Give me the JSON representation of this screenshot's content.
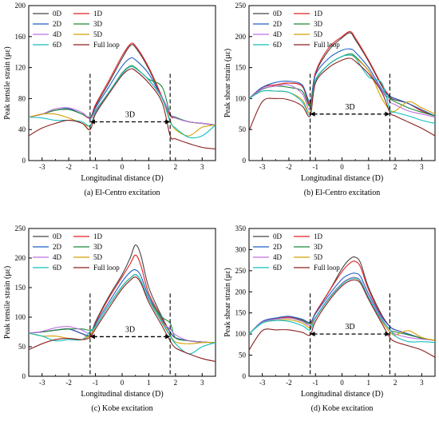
{
  "colors": {
    "0D": "#444444",
    "1D": "#e02020",
    "2D": "#1f5fc8",
    "3D": "#1a8a3a",
    "4D": "#c070e0",
    "5D": "#d4a000",
    "6D": "#10c0c0",
    "Full loop": "#8b2020"
  },
  "chart_data": [
    {
      "type": "line",
      "caption": "(a) El-Centro excitation",
      "xlabel": "Longitudinal distance (D)",
      "ylabel": "Peak tensile strain (με)",
      "xlim": [
        -3.5,
        3.5
      ],
      "ylim": [
        0,
        200
      ],
      "xticks": [
        -3,
        -2,
        -1,
        0,
        1,
        2,
        3
      ],
      "yticks": [
        0,
        40,
        80,
        120,
        160,
        200
      ],
      "legend_position": "top-left",
      "annotation": {
        "text": "3D",
        "x1": -1.2,
        "x2": 1.8,
        "y": 50
      },
      "x": [
        -3.5,
        -3.0,
        -2.5,
        -2.0,
        -1.5,
        -1.2,
        -1.0,
        -0.5,
        0.0,
        0.3,
        0.5,
        1.0,
        1.5,
        1.8,
        2.0,
        2.5,
        3.0,
        3.5
      ],
      "series": [
        {
          "name": "0D",
          "values": [
            56,
            60,
            65,
            66,
            60,
            55,
            70,
            100,
            132,
            148,
            146,
            118,
            80,
            58,
            55,
            50,
            48,
            46
          ]
        },
        {
          "name": "1D",
          "values": [
            56,
            60,
            65,
            66,
            60,
            55,
            72,
            103,
            135,
            150,
            148,
            120,
            82,
            58,
            55,
            50,
            48,
            46
          ]
        },
        {
          "name": "2D",
          "values": [
            56,
            60,
            65,
            67,
            60,
            56,
            68,
            95,
            122,
            132,
            130,
            112,
            80,
            60,
            56,
            50,
            48,
            46
          ]
        },
        {
          "name": "3D",
          "values": [
            56,
            60,
            65,
            66,
            60,
            56,
            65,
            88,
            113,
            122,
            120,
            105,
            95,
            60,
            56,
            50,
            48,
            46
          ]
        },
        {
          "name": "4D",
          "values": [
            56,
            60,
            67,
            68,
            62,
            54,
            64,
            88,
            112,
            121,
            119,
            104,
            82,
            60,
            55,
            50,
            48,
            46
          ]
        },
        {
          "name": "5D",
          "values": [
            56,
            60,
            60,
            55,
            48,
            45,
            62,
            88,
            112,
            121,
            119,
            104,
            80,
            52,
            40,
            32,
            43,
            46
          ]
        },
        {
          "name": "6D",
          "values": [
            56,
            55,
            52,
            52,
            50,
            45,
            62,
            88,
            112,
            121,
            119,
            104,
            80,
            50,
            42,
            30,
            32,
            46
          ]
        },
        {
          "name": "Full loop",
          "values": [
            32,
            42,
            48,
            52,
            48,
            40,
            60,
            86,
            110,
            118,
            116,
            100,
            75,
            32,
            28,
            22,
            17,
            15
          ]
        }
      ]
    },
    {
      "type": "line",
      "caption": "(b) El-Centro excitation",
      "xlabel": "Longitudinal distance (D)",
      "ylabel": "Peak shear strain (με)",
      "xlim": [
        -3.5,
        3.5
      ],
      "ylim": [
        0,
        250
      ],
      "xticks": [
        -3,
        -2,
        -1,
        0,
        1,
        2,
        3
      ],
      "yticks": [
        0,
        50,
        100,
        150,
        200,
        250
      ],
      "legend_position": "top-left",
      "annotation": {
        "text": "3D",
        "x1": -1.2,
        "x2": 1.8,
        "y": 75
      },
      "x": [
        -3.5,
        -3.0,
        -2.5,
        -2.0,
        -1.5,
        -1.2,
        -1.0,
        -0.5,
        0.0,
        0.3,
        0.5,
        1.0,
        1.5,
        1.8,
        2.0,
        2.5,
        3.0,
        3.5
      ],
      "series": [
        {
          "name": "0D",
          "values": [
            100,
            118,
            122,
            125,
            120,
            90,
            140,
            178,
            198,
            206,
            195,
            160,
            120,
            102,
            98,
            92,
            80,
            72
          ]
        },
        {
          "name": "1D",
          "values": [
            100,
            118,
            122,
            125,
            120,
            92,
            142,
            182,
            200,
            208,
            198,
            162,
            122,
            104,
            100,
            92,
            80,
            72
          ]
        },
        {
          "name": "2D",
          "values": [
            100,
            118,
            126,
            128,
            122,
            95,
            138,
            165,
            178,
            180,
            175,
            150,
            115,
            104,
            100,
            92,
            82,
            72
          ]
        },
        {
          "name": "3D",
          "values": [
            100,
            115,
            120,
            118,
            112,
            88,
            130,
            155,
            168,
            172,
            168,
            145,
            112,
            100,
            95,
            85,
            78,
            72
          ]
        },
        {
          "name": "4D",
          "values": [
            100,
            116,
            120,
            122,
            108,
            82,
            128,
            155,
            168,
            170,
            166,
            145,
            112,
            95,
            90,
            80,
            75,
            70
          ]
        },
        {
          "name": "5D",
          "values": [
            100,
            112,
            112,
            110,
            98,
            78,
            128,
            155,
            168,
            170,
            166,
            145,
            100,
            82,
            80,
            95,
            85,
            75
          ]
        },
        {
          "name": "6D",
          "values": [
            100,
            112,
            112,
            110,
            95,
            75,
            128,
            155,
            168,
            170,
            166,
            135,
            125,
            82,
            78,
            72,
            65,
            60
          ]
        },
        {
          "name": "Full loop",
          "values": [
            48,
            95,
            100,
            98,
            88,
            72,
            125,
            150,
            162,
            165,
            160,
            140,
            110,
            78,
            72,
            62,
            52,
            40
          ]
        }
      ]
    },
    {
      "type": "line",
      "caption": "(c) Kobe excitation",
      "xlabel": "Longitudinal distance (D)",
      "ylabel": "Peak tensile strain (με)",
      "xlim": [
        -3.5,
        3.5
      ],
      "ylim": [
        0,
        250
      ],
      "xticks": [
        -3,
        -2,
        -1,
        0,
        1,
        2,
        3
      ],
      "yticks": [
        0,
        50,
        100,
        150,
        200,
        250
      ],
      "legend_position": "top-left",
      "annotation": {
        "text": "3D",
        "x1": -1.2,
        "x2": 1.8,
        "y": 67
      },
      "x": [
        -3.5,
        -3.0,
        -2.5,
        -2.0,
        -1.5,
        -1.2,
        -1.0,
        -0.5,
        0.0,
        0.3,
        0.5,
        0.7,
        1.0,
        1.5,
        1.8,
        2.0,
        2.5,
        3.0,
        3.5
      ],
      "series": [
        {
          "name": "0D",
          "values": [
            73,
            75,
            78,
            80,
            72,
            68,
            92,
            135,
            172,
            200,
            222,
            205,
            150,
            100,
            75,
            65,
            60,
            58,
            57
          ]
        },
        {
          "name": "1D",
          "values": [
            73,
            75,
            78,
            80,
            72,
            68,
            90,
            132,
            168,
            190,
            205,
            188,
            140,
            98,
            75,
            65,
            60,
            58,
            57
          ]
        },
        {
          "name": "2D",
          "values": [
            73,
            75,
            78,
            80,
            72,
            70,
            88,
            125,
            160,
            176,
            180,
            170,
            135,
            95,
            75,
            65,
            60,
            58,
            57
          ]
        },
        {
          "name": "3D",
          "values": [
            73,
            75,
            78,
            80,
            80,
            78,
            85,
            120,
            152,
            166,
            172,
            162,
            130,
            100,
            90,
            65,
            60,
            58,
            57
          ]
        },
        {
          "name": "4D",
          "values": [
            73,
            76,
            82,
            84,
            78,
            72,
            84,
            120,
            152,
            166,
            172,
            162,
            130,
            92,
            80,
            70,
            60,
            58,
            57
          ]
        },
        {
          "name": "5D",
          "values": [
            73,
            68,
            68,
            64,
            62,
            70,
            84,
            120,
            152,
            166,
            172,
            162,
            130,
            92,
            70,
            58,
            55,
            57,
            57
          ]
        },
        {
          "name": "6D",
          "values": [
            73,
            68,
            60,
            62,
            62,
            76,
            84,
            120,
            152,
            166,
            172,
            162,
            130,
            90,
            68,
            55,
            38,
            50,
            57
          ]
        },
        {
          "name": "Full loop",
          "values": [
            45,
            55,
            62,
            64,
            62,
            66,
            80,
            115,
            148,
            162,
            168,
            158,
            125,
            85,
            60,
            48,
            38,
            30,
            25
          ]
        }
      ]
    },
    {
      "type": "line",
      "caption": "(d) Kobe excitation",
      "xlabel": "Longitudinal distance (D)",
      "ylabel": "Peak shear strain (με)",
      "xlim": [
        -3.5,
        3.5
      ],
      "ylim": [
        0,
        350
      ],
      "xticks": [
        -3,
        -2,
        -1,
        0,
        1,
        2,
        3
      ],
      "yticks": [
        0,
        50,
        100,
        150,
        200,
        250,
        300,
        350
      ],
      "legend_position": "top-left",
      "annotation": {
        "text": "3D",
        "x1": -1.2,
        "x2": 1.8,
        "y": 100
      },
      "x": [
        -3.5,
        -3.0,
        -2.5,
        -2.0,
        -1.5,
        -1.2,
        -1.0,
        -0.5,
        0.0,
        0.3,
        0.5,
        0.7,
        1.0,
        1.5,
        1.8,
        2.0,
        2.5,
        3.0,
        3.5
      ],
      "series": [
        {
          "name": "0D",
          "values": [
            100,
            128,
            136,
            140,
            133,
            125,
            150,
            200,
            255,
            278,
            282,
            268,
            210,
            145,
            118,
            110,
            100,
            90,
            85
          ]
        },
        {
          "name": "1D",
          "values": [
            100,
            128,
            136,
            140,
            133,
            125,
            150,
            200,
            248,
            268,
            272,
            258,
            205,
            142,
            118,
            110,
            100,
            90,
            85
          ]
        },
        {
          "name": "2D",
          "values": [
            100,
            130,
            138,
            142,
            135,
            128,
            148,
            192,
            230,
            242,
            244,
            236,
            195,
            140,
            118,
            110,
            100,
            90,
            85
          ]
        },
        {
          "name": "3D",
          "values": [
            100,
            128,
            135,
            138,
            132,
            124,
            140,
            185,
            220,
            232,
            234,
            226,
            188,
            135,
            110,
            105,
            98,
            90,
            85
          ]
        },
        {
          "name": "4D",
          "values": [
            100,
            128,
            135,
            138,
            130,
            120,
            140,
            185,
            220,
            232,
            234,
            226,
            188,
            135,
            110,
            100,
            92,
            88,
            85
          ]
        },
        {
          "name": "5D",
          "values": [
            100,
            126,
            132,
            134,
            126,
            115,
            138,
            183,
            218,
            230,
            232,
            224,
            186,
            130,
            105,
            98,
            108,
            92,
            85
          ]
        },
        {
          "name": "6D",
          "values": [
            100,
            126,
            132,
            130,
            120,
            110,
            138,
            183,
            218,
            230,
            232,
            224,
            186,
            132,
            112,
            95,
            82,
            82,
            80
          ]
        },
        {
          "name": "Full loop",
          "values": [
            62,
            108,
            110,
            110,
            104,
            98,
            130,
            178,
            214,
            226,
            228,
            220,
            182,
            125,
            92,
            82,
            72,
            62,
            45
          ]
        }
      ]
    }
  ]
}
